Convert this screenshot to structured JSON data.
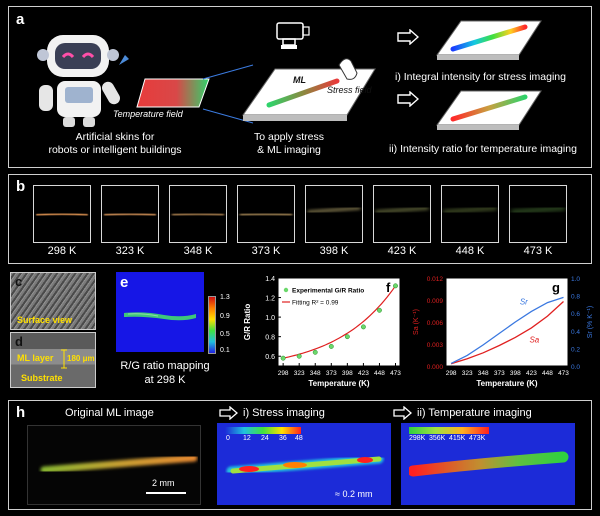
{
  "panel_a": {
    "label": "a",
    "temperature_field": "Temperature field",
    "ml_label": "ML",
    "stress_field": "Stress field",
    "caption_left": [
      "Artificial skins for",
      "robots or intelligent buildings"
    ],
    "caption_mid": [
      "To apply stress",
      "& ML imaging"
    ],
    "result_1": "i) Integral intensity for stress imaging",
    "result_2": "ii) Intensity ratio for temperature imaging"
  },
  "panel_b": {
    "label": "b",
    "frames": [
      {
        "label": "298 K",
        "color": "#e89a55",
        "opacity": 0.95
      },
      {
        "label": "323 K",
        "color": "#e8a060",
        "opacity": 0.9
      },
      {
        "label": "348 K",
        "color": "#e0a868",
        "opacity": 0.85
      },
      {
        "label": "373 K",
        "color": "#d8b070",
        "opacity": 0.8
      },
      {
        "label": "398 K",
        "color": "#c8b878",
        "opacity": 0.6
      },
      {
        "label": "423 K",
        "color": "#b8c070",
        "opacity": 0.5
      },
      {
        "label": "448 K",
        "color": "#a0c060",
        "opacity": 0.45
      },
      {
        "label": "473 K",
        "color": "#78c058",
        "opacity": 0.45
      }
    ]
  },
  "panel_c": {
    "label": "c",
    "caption": "Surface view"
  },
  "panel_d": {
    "label": "d",
    "layer": "ML layer",
    "scale": "180 μm",
    "substrate": "Substrate"
  },
  "panel_e": {
    "label": "e",
    "caption": [
      "R/G ratio mapping",
      "at 298 K"
    ],
    "colorbar_ticks": [
      "1.3",
      "0.9",
      "0.5",
      "0.1"
    ],
    "colors": {
      "bg": "#1616e6",
      "strip": "#3ec87a"
    }
  },
  "panel_f": {
    "label": "f",
    "chart_data": {
      "type": "scatter",
      "xlabel": "Temperature (K)",
      "ylabel": "G/R Ratio",
      "x": [
        298,
        323,
        348,
        373,
        398,
        423,
        448,
        473
      ],
      "xlim": [
        290,
        480
      ],
      "ylim": [
        0.5,
        1.4
      ],
      "yticks": [
        0.6,
        0.8,
        1.0,
        1.2,
        1.4
      ],
      "series": [
        {
          "name": "Experimental G/R Ratio",
          "values": [
            0.58,
            0.6,
            0.64,
            0.7,
            0.8,
            0.9,
            1.07,
            1.32
          ],
          "color": "#6bd86b"
        },
        {
          "name": "Fitting",
          "r2": "R² = 0.99",
          "color": "#e02020"
        }
      ],
      "legend": "top-left"
    }
  },
  "panel_g": {
    "label": "g",
    "chart_data": {
      "type": "line",
      "xlabel": "Temperature (K)",
      "ylabel_left": "Sa (K⁻¹)",
      "ylabel_right": "Sr (% K⁻¹)",
      "x": [
        298,
        323,
        348,
        373,
        398,
        423,
        448,
        473
      ],
      "xlim": [
        290,
        480
      ],
      "ylim_left": [
        0,
        0.012
      ],
      "ylim_right": [
        0,
        1.0
      ],
      "yticks_left": [
        "0.000",
        "0.003",
        "0.006",
        "0.009",
        "0.012"
      ],
      "yticks_right": [
        "0.0",
        "0.2",
        "0.4",
        "0.6",
        "0.8",
        "1.0"
      ],
      "series": [
        {
          "name": "Sa",
          "axis": "left",
          "values": [
            0.0003,
            0.001,
            0.0018,
            0.0028,
            0.0039,
            0.0052,
            0.0068,
            0.0088
          ],
          "color": "#e02020"
        },
        {
          "name": "Sr",
          "axis": "right",
          "values": [
            0.03,
            0.12,
            0.24,
            0.37,
            0.5,
            0.62,
            0.72,
            0.78
          ],
          "color": "#3a78e0"
        }
      ]
    }
  },
  "panel_h": {
    "label": "h",
    "title_1": "Original ML image",
    "title_2": "i) Stress imaging",
    "title_3": "ii) Temperature imaging",
    "scale_1": "2 mm",
    "scale_2": "≈ 0.2 mm",
    "stress_ticks": [
      "0",
      "12",
      "24",
      "36",
      "48"
    ],
    "temp_ticks": [
      "298K",
      "356K",
      "415K",
      "473K"
    ]
  }
}
